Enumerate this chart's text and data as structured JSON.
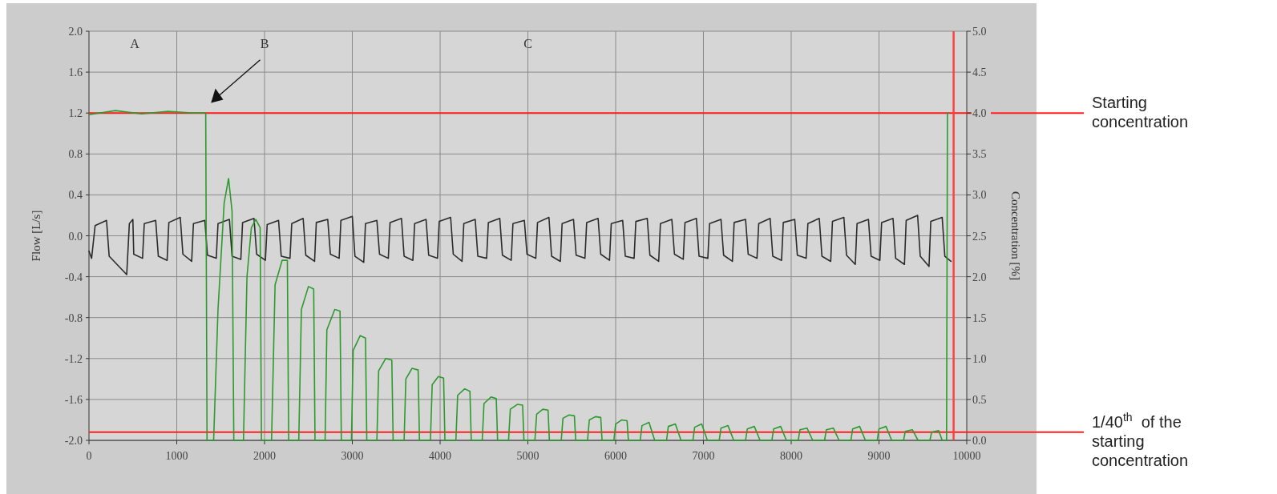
{
  "chart_data": {
    "type": "line",
    "ylabel": "Flow [L/s]",
    "y2label": "Concentration [%]",
    "xlim": [
      0,
      10000
    ],
    "xticks": [
      0,
      1000,
      2000,
      3000,
      4000,
      5000,
      6000,
      7000,
      8000,
      9000,
      10000
    ],
    "ylim": [
      -2,
      2
    ],
    "yticks": [
      {
        "value": 2,
        "label": "2.0"
      },
      {
        "value": 1.6,
        "label": "1.6"
      },
      {
        "value": 1.2,
        "label": "1.2"
      },
      {
        "value": 0.8,
        "label": "0.8"
      },
      {
        "value": 0.4,
        "label": "0.4"
      },
      {
        "value": 0,
        "label": "0.0"
      },
      {
        "value": -0.4,
        "label": "-0.4"
      },
      {
        "value": -0.8,
        "label": "-0.8"
      },
      {
        "value": -1.2,
        "label": "-1.2"
      },
      {
        "value": -1.6,
        "label": "-1.6"
      },
      {
        "value": -2,
        "label": "-2.0"
      }
    ],
    "y2lim": [
      0,
      5
    ],
    "y2ticks": [
      {
        "value": 5,
        "label": "5.0"
      },
      {
        "value": 4.5,
        "label": "4.5"
      },
      {
        "value": 4,
        "label": "4.0"
      },
      {
        "value": 3.5,
        "label": "3.5"
      },
      {
        "value": 3,
        "label": "3.0"
      },
      {
        "value": 2.5,
        "label": "2.5"
      },
      {
        "value": 2,
        "label": "2.0"
      },
      {
        "value": 1.5,
        "label": "1.5"
      },
      {
        "value": 1,
        "label": "1.0"
      },
      {
        "value": 0.5,
        "label": "0.5"
      },
      {
        "value": 0,
        "label": "0.0"
      }
    ],
    "grid": true,
    "series": [
      {
        "color": "#2b2b2b",
        "x": [
          0,
          30,
          70,
          200,
          230,
          430,
          460,
          500,
          510,
          610,
          630,
          760,
          790,
          890,
          910,
          1040,
          1070,
          1170,
          1190,
          1320,
          1350,
          1450,
          1470,
          1600,
          1630,
          1730,
          1750,
          1880,
          1910,
          2010,
          2030,
          2160,
          2190,
          2290,
          2310,
          2440,
          2470,
          2570,
          2590,
          2720,
          2750,
          2850,
          2870,
          3000,
          3030,
          3130,
          3150,
          3280,
          3310,
          3410,
          3430,
          3560,
          3590,
          3690,
          3710,
          3840,
          3870,
          3970,
          3990,
          4120,
          4150,
          4250,
          4270,
          4400,
          4430,
          4530,
          4550,
          4680,
          4710,
          4810,
          4830,
          4960,
          4990,
          5090,
          5110,
          5240,
          5270,
          5370,
          5390,
          5520,
          5550,
          5650,
          5670,
          5800,
          5830,
          5930,
          5950,
          6080,
          6110,
          6210,
          6230,
          6360,
          6390,
          6490,
          6510,
          6640,
          6670,
          6770,
          6790,
          6920,
          6950,
          7050,
          7070,
          7200,
          7230,
          7330,
          7350,
          7480,
          7510,
          7610,
          7630,
          7760,
          7790,
          7890,
          7910,
          8040,
          8070,
          8170,
          8190,
          8320,
          8350,
          8450,
          8470,
          8600,
          8630,
          8730,
          8750,
          8880,
          8910,
          9010,
          9030,
          9160,
          9190,
          9290,
          9310,
          9440,
          9470,
          9570,
          9590,
          9720,
          9750,
          9820
        ],
        "values": [
          -0.15,
          -0.22,
          0.1,
          0.15,
          -0.2,
          -0.38,
          0.12,
          0.16,
          -0.18,
          -0.22,
          0.12,
          0.15,
          -0.2,
          -0.24,
          0.13,
          0.18,
          -0.18,
          -0.25,
          0.12,
          0.15,
          -0.19,
          -0.22,
          0.12,
          0.16,
          -0.2,
          -0.23,
          0.13,
          0.17,
          -0.18,
          -0.24,
          0.11,
          0.15,
          -0.2,
          -0.22,
          0.12,
          0.17,
          -0.19,
          -0.25,
          0.13,
          0.16,
          -0.18,
          -0.22,
          0.15,
          0.19,
          -0.2,
          -0.26,
          0.12,
          0.15,
          -0.18,
          -0.22,
          0.13,
          0.17,
          -0.2,
          -0.24,
          0.12,
          0.16,
          -0.19,
          -0.22,
          0.14,
          0.18,
          -0.18,
          -0.25,
          0.12,
          0.16,
          -0.2,
          -0.22,
          0.13,
          0.17,
          -0.19,
          -0.24,
          0.12,
          0.15,
          -0.18,
          -0.22,
          0.13,
          0.18,
          -0.2,
          -0.25,
          0.12,
          0.16,
          -0.19,
          -0.22,
          0.13,
          0.17,
          -0.18,
          -0.24,
          0.12,
          0.15,
          -0.2,
          -0.22,
          0.14,
          0.17,
          -0.19,
          -0.25,
          0.12,
          0.16,
          -0.18,
          -0.23,
          0.13,
          0.17,
          -0.2,
          -0.22,
          0.12,
          0.16,
          -0.19,
          -0.25,
          0.13,
          0.16,
          -0.18,
          -0.22,
          0.12,
          0.17,
          -0.2,
          -0.24,
          0.13,
          0.16,
          -0.19,
          -0.22,
          0.12,
          0.17,
          -0.2,
          -0.25,
          0.14,
          0.18,
          -0.19,
          -0.28,
          0.12,
          0.16,
          -0.2,
          -0.24,
          0.13,
          0.17,
          -0.22,
          -0.28,
          0.15,
          0.2,
          -0.2,
          -0.3,
          0.14,
          0.18,
          -0.2,
          -0.25
        ]
      },
      {
        "color": "#2e9a2e",
        "axis": "y2",
        "x": [
          0,
          300,
          600,
          900,
          1200,
          1330,
          1345,
          1420,
          1470,
          1540,
          1590,
          1630,
          1650,
          1700,
          1760,
          1800,
          1850,
          1900,
          1950,
          1965,
          2050,
          2080,
          2120,
          2200,
          2260,
          2275,
          2360,
          2390,
          2420,
          2500,
          2560,
          2575,
          2660,
          2690,
          2710,
          2800,
          2860,
          2875,
          2960,
          2990,
          3010,
          3090,
          3150,
          3165,
          3250,
          3280,
          3300,
          3380,
          3450,
          3465,
          3550,
          3590,
          3610,
          3680,
          3750,
          3765,
          3850,
          3890,
          3910,
          3980,
          4040,
          4055,
          4140,
          4180,
          4200,
          4280,
          4340,
          4355,
          4440,
          4480,
          4500,
          4580,
          4640,
          4655,
          4740,
          4780,
          4800,
          4880,
          4940,
          4955,
          5040,
          5080,
          5100,
          5170,
          5230,
          5245,
          5330,
          5380,
          5400,
          5470,
          5530,
          5545,
          5630,
          5680,
          5700,
          5770,
          5830,
          5845,
          5930,
          5980,
          6000,
          6070,
          6130,
          6145,
          6230,
          6280,
          6300,
          6380,
          6445,
          6530,
          6580,
          6600,
          6680,
          6745,
          6830,
          6880,
          6900,
          6980,
          7045,
          7130,
          7180,
          7200,
          7280,
          7345,
          7430,
          7480,
          7500,
          7580,
          7645,
          7730,
          7780,
          7800,
          7880,
          7945,
          8030,
          8080,
          8100,
          8180,
          8245,
          8330,
          8380,
          8400,
          8480,
          8545,
          8630,
          8680,
          8700,
          8780,
          8845,
          8930,
          8980,
          9000,
          9080,
          9145,
          9230,
          9280,
          9300,
          9380,
          9445,
          9530,
          9580,
          9600,
          9680,
          9720,
          9750,
          9770,
          9780,
          9790
        ],
        "values": [
          3.98,
          4.03,
          3.99,
          4.02,
          4.0,
          4.0,
          0.0,
          0.0,
          1.6,
          2.9,
          3.2,
          2.8,
          0.0,
          0.0,
          0.0,
          2.0,
          2.6,
          2.7,
          2.6,
          0.0,
          0.0,
          0.0,
          1.9,
          2.2,
          2.2,
          0.0,
          0.0,
          0.0,
          1.6,
          1.88,
          1.85,
          0.0,
          0.0,
          0.0,
          1.35,
          1.6,
          1.58,
          0.0,
          0.0,
          0.0,
          1.1,
          1.28,
          1.25,
          0.0,
          0.0,
          0.0,
          0.85,
          1.0,
          0.98,
          0.0,
          0.0,
          0.0,
          0.75,
          0.88,
          0.86,
          0.0,
          0.0,
          0.0,
          0.68,
          0.78,
          0.76,
          0.0,
          0.0,
          0.0,
          0.55,
          0.63,
          0.6,
          0.0,
          0.0,
          0.0,
          0.45,
          0.53,
          0.51,
          0.0,
          0.0,
          0.0,
          0.38,
          0.44,
          0.43,
          0.0,
          0.0,
          0.0,
          0.32,
          0.38,
          0.37,
          0.0,
          0.0,
          0.0,
          0.27,
          0.31,
          0.3,
          0.0,
          0.0,
          0.0,
          0.25,
          0.29,
          0.28,
          0.0,
          0.0,
          0.0,
          0.2,
          0.25,
          0.24,
          0.0,
          0.0,
          0.0,
          0.18,
          0.22,
          0.0,
          0.0,
          0.0,
          0.17,
          0.2,
          0.0,
          0.0,
          0.0,
          0.16,
          0.2,
          0.0,
          0.0,
          0.0,
          0.15,
          0.18,
          0.0,
          0.0,
          0.0,
          0.14,
          0.17,
          0.0,
          0.0,
          0.0,
          0.14,
          0.17,
          0.0,
          0.0,
          0.0,
          0.13,
          0.15,
          0.0,
          0.0,
          0.0,
          0.13,
          0.15,
          0.0,
          0.0,
          0.0,
          0.14,
          0.17,
          0.0,
          0.0,
          0.0,
          0.14,
          0.17,
          0.0,
          0.0,
          0.0,
          0.11,
          0.13,
          0.0,
          0.0,
          0.0,
          0.1,
          0.12,
          0.0,
          0.0,
          0.0,
          4.0,
          4.0
        ]
      }
    ],
    "ref_lines": [
      {
        "axis": "y2",
        "value": 4,
        "label": "Starting concentration",
        "color": "#ff2020"
      },
      {
        "axis": "y2",
        "value": 0.1,
        "label": "1/40$^{th}$  of the starting concentration",
        "color": "#ff2020"
      },
      {
        "axis": "x",
        "value": 9850,
        "color": "#ff4040"
      }
    ],
    "annotations": [
      "A",
      "B",
      "C"
    ]
  }
}
